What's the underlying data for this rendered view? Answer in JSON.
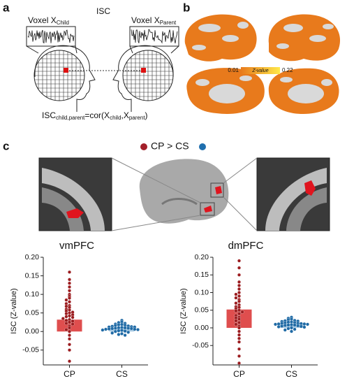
{
  "panel_a": {
    "label": "a",
    "title": "ISC",
    "voxel_child": [
      "Voxel X",
      "Child"
    ],
    "voxel_parent": [
      "Voxel X",
      "Parent"
    ],
    "equation": [
      "ISC",
      "child,parent",
      "=cor(X",
      "child",
      ",X",
      "parent",
      ")"
    ]
  },
  "panel_b": {
    "label": "b",
    "colorbar": {
      "min_label": "0.01",
      "title": "Z-value",
      "max_label": "0.22"
    }
  },
  "panel_c": {
    "label": "c",
    "legend": {
      "text": "CP > CS",
      "colors": [
        "#a3202a",
        "#1f6fae"
      ]
    }
  },
  "chart_data": [
    {
      "type": "bar",
      "title": "vmPFC",
      "ylabel": "ISC (Z-value)",
      "categories": [
        "CP",
        "CS"
      ],
      "values": [
        0.032,
        0.01
      ],
      "errors": [
        0.008,
        0.002
      ],
      "colors": [
        "#dc3b3b",
        "#9cc3e0"
      ],
      "point_colors": [
        "#9b1c1f",
        "#1f6aa5"
      ],
      "points": [
        [
          0.16,
          0.14,
          0.13,
          0.12,
          0.11,
          0.1,
          0.095,
          0.09,
          0.085,
          0.08,
          0.075,
          0.07,
          0.068,
          0.065,
          0.06,
          0.058,
          0.055,
          0.052,
          0.05,
          0.048,
          0.045,
          0.042,
          0.04,
          0.038,
          0.035,
          0.032,
          0.03,
          0.028,
          0.025,
          0.022,
          0.02,
          0.015,
          0.01,
          0.005,
          0,
          -0.01,
          -0.02,
          -0.035,
          -0.05,
          -0.08
        ],
        [
          0.03,
          0.026,
          0.024,
          0.022,
          0.02,
          0.019,
          0.018,
          0.017,
          0.016,
          0.015,
          0.014,
          0.013,
          0.012,
          0.012,
          0.011,
          0.01,
          0.01,
          0.009,
          0.009,
          0.008,
          0.008,
          0.007,
          0.006,
          0.006,
          0.005,
          0.004,
          0.003,
          0.002,
          0.001,
          0,
          -0.002,
          -0.004,
          -0.006,
          -0.008,
          -0.01
        ]
      ],
      "ylim": [
        -0.09,
        0.2
      ],
      "yticks": [
        {
          "value": -0.05,
          "label": "-0.05"
        },
        {
          "value": 0,
          "label": "0.00"
        },
        {
          "value": 0.05,
          "label": "0.05"
        },
        {
          "value": 0.1,
          "label": "0.10"
        },
        {
          "value": 0.15,
          "label": "0.15"
        },
        {
          "value": 0.2,
          "label": "0.20"
        }
      ]
    },
    {
      "type": "bar",
      "title": "dmPFC",
      "ylabel": "ISC (Z-value)",
      "categories": [
        "CP",
        "CS"
      ],
      "values": [
        0.052,
        0.012
      ],
      "errors": [
        0.01,
        0.002
      ],
      "colors": [
        "#dc3b3b",
        "#9cc3e0"
      ],
      "point_colors": [
        "#9b1c1f",
        "#1f6aa5"
      ],
      "points": [
        [
          0.19,
          0.17,
          0.15,
          0.13,
          0.12,
          0.11,
          0.1,
          0.095,
          0.09,
          0.085,
          0.08,
          0.075,
          0.07,
          0.065,
          0.06,
          0.058,
          0.055,
          0.05,
          0.048,
          0.045,
          0.04,
          0.035,
          0.03,
          0.028,
          0.025,
          0.02,
          0.015,
          0.01,
          0.005,
          0,
          -0.01,
          -0.02,
          -0.03,
          -0.04,
          -0.06,
          -0.08,
          -0.1
        ],
        [
          0.03,
          0.027,
          0.025,
          0.023,
          0.021,
          0.02,
          0.019,
          0.018,
          0.017,
          0.016,
          0.015,
          0.014,
          0.013,
          0.013,
          0.012,
          0.011,
          0.011,
          0.01,
          0.01,
          0.009,
          0.008,
          0.008,
          0.007,
          0.006,
          0.005,
          0.004,
          0.003,
          0.002,
          0,
          -0.002,
          -0.004,
          -0.006,
          -0.01
        ]
      ],
      "ylim": [
        -0.105,
        0.2
      ],
      "yticks": [
        {
          "value": -0.05,
          "label": "-0.05"
        },
        {
          "value": 0,
          "label": "0.00"
        },
        {
          "value": 0.05,
          "label": "0.05"
        },
        {
          "value": 0.1,
          "label": "0.10"
        },
        {
          "value": 0.15,
          "label": "0.15"
        },
        {
          "value": 0.2,
          "label": "0.20"
        }
      ]
    }
  ]
}
